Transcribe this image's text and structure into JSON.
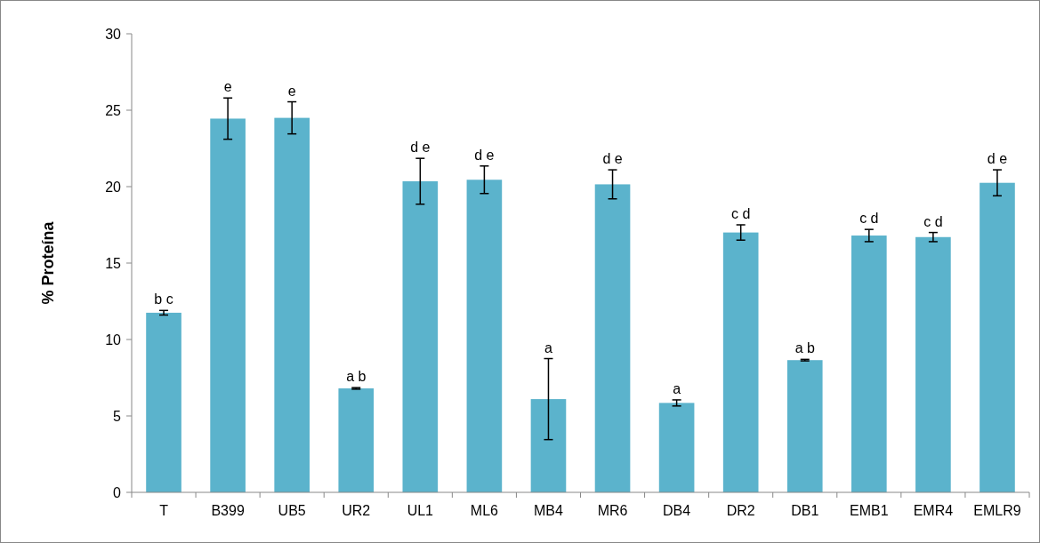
{
  "chart_data": {
    "type": "bar",
    "ylabel": "% Proteína",
    "categories": [
      "T",
      "B399",
      "UB5",
      "UR2",
      "UL1",
      "ML6",
      "MB4",
      "MR6",
      "DB4",
      "DR2",
      "DB1",
      "EMB1",
      "EMR4",
      "EMLR9"
    ],
    "values": [
      11.75,
      24.45,
      24.5,
      6.8,
      20.35,
      20.45,
      6.1,
      20.15,
      5.85,
      17.0,
      8.65,
      16.8,
      16.7,
      20.25
    ],
    "errors": [
      0.15,
      1.35,
      1.05,
      0.05,
      1.5,
      0.9,
      2.65,
      0.95,
      0.2,
      0.5,
      0.05,
      0.4,
      0.3,
      0.85
    ],
    "color": "#5bb3cc",
    "ylim": [
      0,
      30
    ],
    "yticks": [
      0,
      5,
      10,
      15,
      20,
      25,
      30
    ],
    "grid": false,
    "annotations": [
      {
        "text": "b c",
        "x": "T",
        "y": 11.9
      },
      {
        "text": "e",
        "x": "B399",
        "y": 25.8
      },
      {
        "text": "e",
        "x": "UB5",
        "y": 25.55
      },
      {
        "text": "a b",
        "x": "UR2",
        "y": 6.85
      },
      {
        "text": "d e",
        "x": "UL1",
        "y": 21.85
      },
      {
        "text": "d e",
        "x": "ML6",
        "y": 21.35
      },
      {
        "text": "a",
        "x": "MB4",
        "y": 8.75
      },
      {
        "text": "d e",
        "x": "MR6",
        "y": 21.1
      },
      {
        "text": "a",
        "x": "DB4",
        "y": 6.05
      },
      {
        "text": "c d",
        "x": "DR2",
        "y": 17.5
      },
      {
        "text": "a b",
        "x": "DB1",
        "y": 8.7
      },
      {
        "text": "c d",
        "x": "EMB1",
        "y": 17.2
      },
      {
        "text": "c d",
        "x": "EMR4",
        "y": 17.0
      },
      {
        "text": "d e",
        "x": "EMLR9",
        "y": 21.1
      }
    ]
  }
}
